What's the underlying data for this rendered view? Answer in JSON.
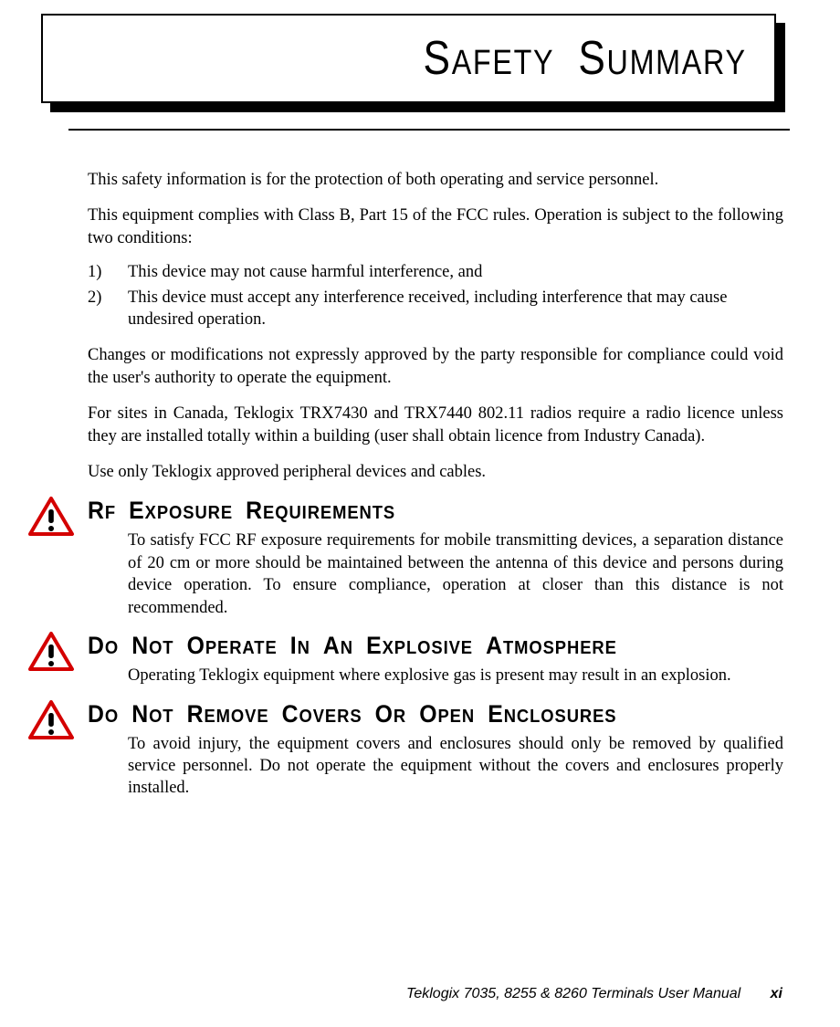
{
  "title": "SAFETY SUMMARY",
  "intro": [
    "This safety information is for the protection of both operating and service personnel.",
    "This equipment complies with Class B, Part 15 of the FCC rules. Operation is subject to the following two conditions:"
  ],
  "conditions": [
    {
      "num": "1)",
      "text": "This device may not cause harmful interference, and"
    },
    {
      "num": "2)",
      "text": "This device must accept any interference received, including interference that may cause undesired operation."
    }
  ],
  "post_list": [
    "Changes or modifications not expressly approved by the party responsible for compliance could void the user's authority to operate the equipment.",
    "For sites in Canada, Teklogix TRX7430 and TRX7440 802.11 radios require a radio licence unless they are installed totally within a building (user shall obtain licence from Industry Canada).",
    "Use only Teklogix approved peripheral devices and cables."
  ],
  "sections": [
    {
      "heading": "RF EXPOSURE REQUIREMENTS",
      "body": "To satisfy FCC RF exposure requirements for mobile transmitting devices, a separation distance of 20 cm or more should be maintained between the antenna of this device and persons during device operation. To ensure compliance, operation at closer than this distance is not recommended."
    },
    {
      "heading": "DO NOT OPERATE IN AN EXPLOSIVE ATMOSPHERE",
      "body": "Operating Teklogix equipment where explosive gas is present may result in an explosion."
    },
    {
      "heading": "DO NOT REMOVE COVERS OR OPEN ENCLOSURES",
      "body": "To avoid injury, the equipment covers and enclosures should only be removed by qualified service personnel. Do not operate the equipment without the covers and enclosures properly installed."
    }
  ],
  "footer_text": "Teklogix 7035, 8255 & 8260 Terminals User Manual",
  "page_number": "xi",
  "icon_colors": {
    "stroke": "#d40000",
    "fill": "#ffffff",
    "exclaim": "#000000"
  }
}
